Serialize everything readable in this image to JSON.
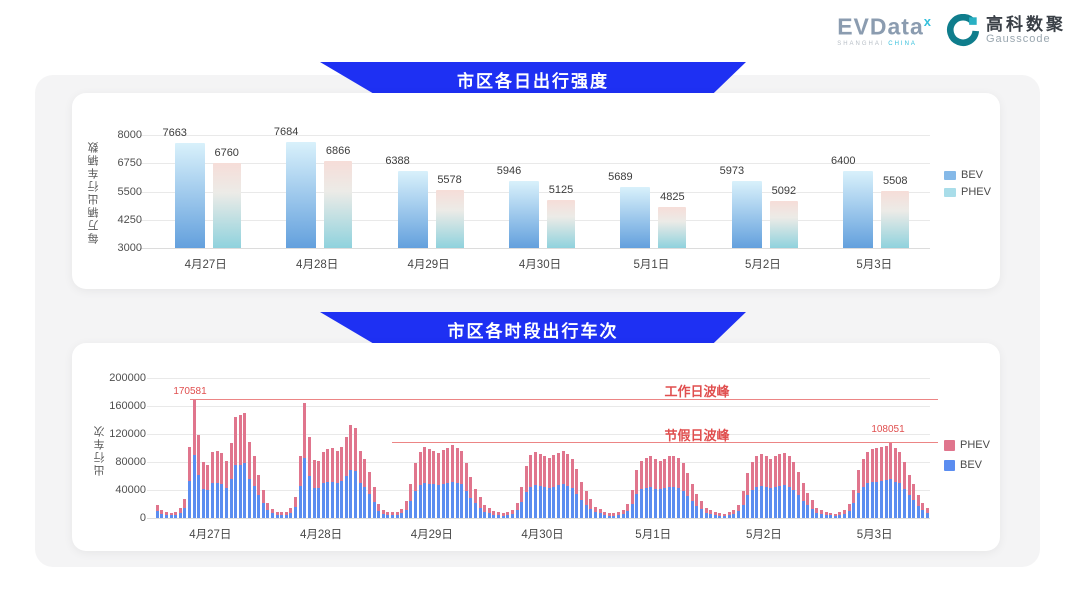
{
  "header": {
    "evdata_wordmark": "EVData",
    "evdata_sup": "x",
    "evdata_sub_gray": "SHANGHAI",
    "evdata_sub_cyan": "CHINA",
    "gausscode_cn": "高科数聚",
    "gausscode_en": "Gausscode"
  },
  "banners": {
    "daily": "市区各日出行强度",
    "hourly": "市区各时段出行车次"
  },
  "colors": {
    "banner_blue": "#1e30f3",
    "bev_gradient_top": "#d9f1fb",
    "bev_gradient_bottom": "#63a0dd",
    "phev_gradient_top": "#f6ddd8",
    "phev_gradient_mid": "#ecebe7",
    "phev_gradient_bottom": "#8fd2dd",
    "legend1_bev": "#85b9e8",
    "legend1_phev": "#a9dde9",
    "hourly_bev": "#5b8df0",
    "hourly_phev": "#e0758d",
    "annotation_red": "#e04f4f",
    "annotation_line_red": "#ec8585"
  },
  "chart_data": [
    {
      "type": "bar",
      "title": "市区各日出行强度",
      "ylabel": "每万辆出行车辆数",
      "xlabel": "",
      "ylim": [
        3000,
        8000
      ],
      "yticks": [
        3000,
        4250,
        5500,
        6750,
        8000
      ],
      "grid": true,
      "legend_position": "right",
      "legend": [
        "BEV",
        "PHEV"
      ],
      "categories": [
        "4月27日",
        "4月28日",
        "4月29日",
        "4月30日",
        "5月1日",
        "5月2日",
        "5月3日"
      ],
      "series": [
        {
          "name": "BEV",
          "values": [
            7663,
            7684,
            6388,
            5946,
            5689,
            5973,
            6400
          ]
        },
        {
          "name": "PHEV",
          "values": [
            6760,
            6866,
            5578,
            5125,
            4825,
            5092,
            5508
          ]
        }
      ]
    },
    {
      "type": "bar",
      "subtype": "stacked-hourly",
      "title": "市区各时段出行车次",
      "ylabel": "出行车次",
      "xlabel": "",
      "ylim": [
        0,
        200000
      ],
      "yticks": [
        0,
        40000,
        80000,
        120000,
        160000,
        200000
      ],
      "grid": true,
      "legend_position": "right",
      "legend": [
        "PHEV",
        "BEV"
      ],
      "categories": [
        "4月27日",
        "4月28日",
        "4月29日",
        "4月30日",
        "5月1日",
        "5月2日",
        "5月3日"
      ],
      "hours_per_day": 24,
      "annotations": [
        {
          "name": "workday_peak",
          "label": "工作日波峰",
          "value_label": "170581",
          "value": 170581
        },
        {
          "name": "holiday_peak",
          "label": "节假日波峰",
          "value_label": "108051",
          "value": 108051
        }
      ],
      "days": [
        {
          "label": "4月27日",
          "bev": [
            9400,
            5700,
            4200,
            3600,
            4700,
            7300,
            14000,
            53000,
            90600,
            62000,
            41600,
            39500,
            49400,
            49900,
            48400,
            42600,
            55600,
            75400,
            76400,
            78000,
            56200,
            45800,
            32200,
            20800
          ],
          "phev": [
            8600,
            5300,
            3800,
            3400,
            4300,
            6700,
            13000,
            48000,
            79981,
            57000,
            38400,
            36500,
            45600,
            46100,
            44600,
            39400,
            51400,
            69600,
            70600,
            72000,
            51800,
            42200,
            29800,
            19200
          ]
        },
        {
          "label": "4月28日",
          "bev": [
            11400,
            6800,
            4700,
            4200,
            4700,
            7800,
            15600,
            46300,
            85800,
            60300,
            43200,
            42600,
            49400,
            51500,
            52000,
            49900,
            52500,
            60300,
            69200,
            66600,
            49900,
            44200,
            34300,
            23400
          ],
          "phev": [
            10600,
            6200,
            4300,
            3800,
            4300,
            7200,
            14400,
            42700,
            79200,
            55700,
            39800,
            39400,
            45600,
            47500,
            48000,
            46100,
            48500,
            55700,
            63800,
            61400,
            46100,
            40800,
            31700,
            21600
          ]
        },
        {
          "label": "4月29日",
          "bev": [
            10000,
            6000,
            4500,
            4000,
            4500,
            6500,
            12000,
            24000,
            39000,
            47500,
            50500,
            49000,
            48000,
            46500,
            48500,
            50000,
            52000,
            50000,
            48000,
            39000,
            29000,
            21000,
            15000,
            9000
          ],
          "phev": [
            10000,
            6000,
            4500,
            4000,
            4500,
            6500,
            12000,
            24000,
            39000,
            47500,
            50500,
            49000,
            48000,
            46500,
            48500,
            50000,
            52000,
            50000,
            48000,
            39000,
            29000,
            21000,
            15000,
            9000
          ]
        },
        {
          "label": "4月30日",
          "bev": [
            7000,
            5000,
            4000,
            3500,
            4000,
            6000,
            11000,
            22500,
            37500,
            45000,
            47000,
            46000,
            44000,
            43000,
            45000,
            46500,
            48000,
            46000,
            42500,
            35000,
            26000,
            19000,
            13500,
            8000
          ],
          "phev": [
            7000,
            5000,
            4000,
            3500,
            4000,
            6000,
            11000,
            22500,
            37500,
            45000,
            47000,
            46000,
            44000,
            43000,
            45000,
            46500,
            48000,
            46000,
            42500,
            35000,
            26000,
            19000,
            13500,
            8000
          ]
        },
        {
          "label": "5月1日",
          "bev": [
            6500,
            4500,
            3500,
            3500,
            4000,
            5500,
            10000,
            20000,
            34000,
            41000,
            43000,
            44000,
            42000,
            41000,
            42500,
            44000,
            44500,
            43000,
            39000,
            32000,
            24000,
            17500,
            12500,
            7500
          ],
          "phev": [
            6500,
            4500,
            3500,
            3500,
            4000,
            5500,
            10000,
            20000,
            34000,
            41000,
            43000,
            44000,
            42000,
            41000,
            42500,
            44000,
            44500,
            43000,
            39000,
            32000,
            24000,
            17500,
            12500,
            7500
          ]
        },
        {
          "label": "5月2日",
          "bev": [
            6000,
            4500,
            3500,
            3000,
            4000,
            5500,
            9500,
            19000,
            32500,
            40000,
            44000,
            45500,
            44000,
            42500,
            44000,
            45500,
            46500,
            44500,
            40000,
            33000,
            25000,
            18000,
            13000,
            7500
          ],
          "phev": [
            6000,
            4500,
            3500,
            3000,
            4000,
            5500,
            9500,
            19000,
            32500,
            40000,
            44000,
            45500,
            44000,
            42500,
            44000,
            45500,
            46500,
            44500,
            40000,
            33000,
            25000,
            18000,
            13000,
            7500
          ]
        },
        {
          "label": "5月3日",
          "bev": [
            6200,
            4700,
            3600,
            3100,
            4200,
            5700,
            10400,
            20800,
            35400,
            44200,
            49400,
            51500,
            52000,
            52500,
            53600,
            56000,
            52000,
            49400,
            41600,
            32200,
            25000,
            17200,
            11400,
            7300
          ],
          "phev": [
            5800,
            4300,
            3400,
            2900,
            3800,
            5300,
            9600,
            19200,
            32600,
            40800,
            45600,
            47500,
            48000,
            48500,
            49400,
            52051,
            48000,
            45600,
            38400,
            29800,
            23000,
            15800,
            10600,
            6700
          ]
        }
      ]
    }
  ]
}
